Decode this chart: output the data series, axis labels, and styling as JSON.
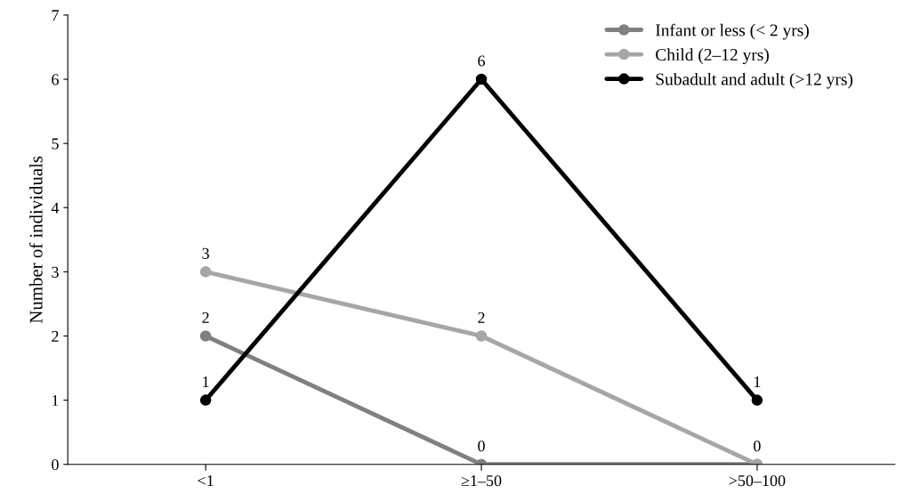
{
  "chart_data": {
    "type": "line",
    "ylabel": "Number of individuals",
    "categories": [
      "<1",
      "≥1–50",
      ">50–100"
    ],
    "series": [
      {
        "name": "Infant or less (< 2 yrs)",
        "color": "#808080",
        "values": [
          2,
          0,
          0
        ],
        "value_labels": [
          "2",
          "0",
          null
        ]
      },
      {
        "name": "Child (2–12 yrs)",
        "color": "#a6a6a6",
        "values": [
          3,
          2,
          0
        ],
        "value_labels": [
          "3",
          "2",
          "0"
        ]
      },
      {
        "name": "Subadult and adult (>12 yrs)",
        "color": "#000000",
        "values": [
          1,
          6,
          1
        ],
        "value_labels": [
          "1",
          "6",
          "1"
        ]
      }
    ],
    "ylim": [
      0,
      7
    ],
    "yticks": [
      0,
      1,
      2,
      3,
      4,
      5,
      6,
      7
    ],
    "grid": false,
    "legend": "top right",
    "marker": "circle",
    "line_style": "solid"
  }
}
